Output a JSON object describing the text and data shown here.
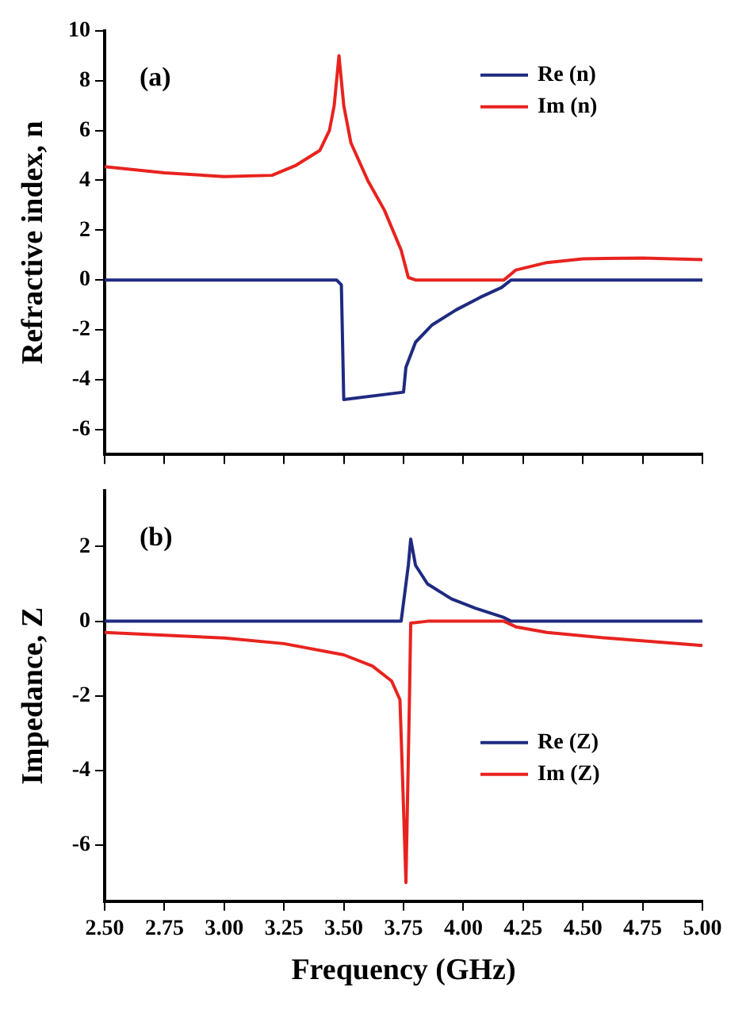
{
  "chart_data": [
    {
      "type": "line",
      "ylabel": "Refractive index, n",
      "annotations": [
        "(a)"
      ],
      "legend": "top right",
      "grid": false,
      "tick_labels": "y",
      "marker": "none",
      "line_style": "solid",
      "xlim": [
        2.5,
        5.0
      ],
      "xticks": [
        2.5,
        2.75,
        3.0,
        3.25,
        3.5,
        3.75,
        4.0,
        4.25,
        4.5,
        4.75,
        5.0
      ],
      "ylim": [
        -7,
        10
      ],
      "yticks": [
        -6,
        -4,
        -2,
        0,
        2,
        4,
        6,
        8,
        10
      ],
      "series": [
        {
          "name": "Re (n)",
          "color": "#1f2a80",
          "x": [
            2.5,
            3.0,
            3.47,
            3.49,
            3.5,
            3.75,
            3.76,
            3.8,
            3.87,
            3.97,
            4.07,
            4.16,
            4.2,
            4.5,
            5.0
          ],
          "values": [
            0,
            0,
            0,
            -0.2,
            -4.8,
            -4.5,
            -3.5,
            -2.5,
            -1.8,
            -1.2,
            -0.7,
            -0.3,
            0,
            0,
            0
          ]
        },
        {
          "name": "Im (n)",
          "color": "#e8231f",
          "x": [
            2.5,
            2.75,
            3.0,
            3.2,
            3.3,
            3.4,
            3.44,
            3.46,
            3.48,
            3.5,
            3.53,
            3.6,
            3.67,
            3.74,
            3.77,
            3.8,
            4.0,
            4.17,
            4.22,
            4.35,
            4.5,
            4.75,
            5.0
          ],
          "values": [
            4.55,
            4.3,
            4.15,
            4.2,
            4.6,
            5.2,
            6,
            7,
            9,
            7,
            5.5,
            4,
            2.8,
            1.2,
            0.1,
            0,
            0,
            0,
            0.4,
            0.7,
            0.85,
            0.88,
            0.82
          ]
        }
      ]
    },
    {
      "type": "line",
      "xlabel": "Frequency (GHz)",
      "ylabel": "Impedance, Z",
      "annotations": [
        "(b)"
      ],
      "legend": "bottom right",
      "grid": false,
      "marker": "none",
      "line_style": "solid",
      "xlim": [
        2.5,
        5.0
      ],
      "xticks": [
        {
          "value": 2.5,
          "label": "2.50"
        },
        2.75,
        {
          "value": 3.0,
          "label": "3.00"
        },
        3.25,
        {
          "value": 3.5,
          "label": "3.50"
        },
        3.75,
        {
          "value": 4.0,
          "label": "4.00"
        },
        4.25,
        {
          "value": 4.5,
          "label": "4.50"
        },
        4.75,
        {
          "value": 5.0,
          "label": "5.00"
        }
      ],
      "ylim": [
        -7.5,
        3.5
      ],
      "yticks": [
        -6,
        -4,
        -2,
        0,
        2
      ],
      "series": [
        {
          "name": "Re (Z)",
          "color": "#1f2a80",
          "x": [
            2.5,
            3.0,
            3.5,
            3.74,
            3.77,
            3.78,
            3.8,
            3.85,
            3.95,
            4.05,
            4.17,
            4.2,
            4.5,
            5.0
          ],
          "values": [
            0,
            0,
            0,
            0,
            1.5,
            2.2,
            1.5,
            1.0,
            0.6,
            0.35,
            0.1,
            0,
            0,
            0
          ]
        },
        {
          "name": "Im (Z)",
          "color": "#e8231f",
          "x": [
            2.5,
            3.0,
            3.25,
            3.5,
            3.62,
            3.7,
            3.735,
            3.75,
            3.76,
            3.775,
            3.78,
            3.85,
            4.0,
            4.17,
            4.22,
            4.35,
            4.6,
            4.8,
            5.0
          ],
          "values": [
            -0.3,
            -0.45,
            -0.6,
            -0.9,
            -1.2,
            -1.6,
            -2.1,
            -5,
            -7,
            -2,
            -0.05,
            0,
            0,
            0,
            -0.15,
            -0.3,
            -0.45,
            -0.55,
            -0.65
          ]
        }
      ]
    }
  ]
}
